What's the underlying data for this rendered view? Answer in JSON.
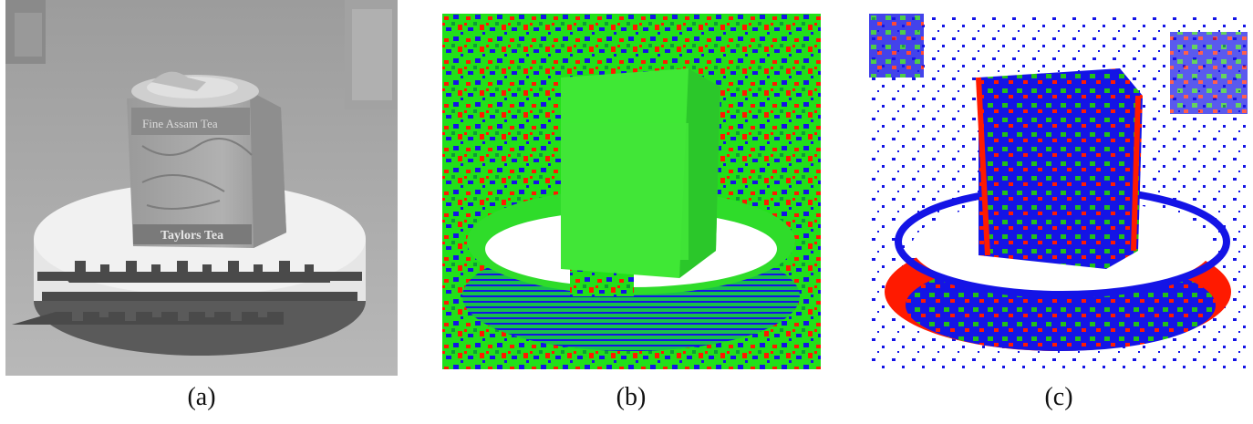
{
  "figure": {
    "panels": [
      {
        "id": "a",
        "caption": "(a)"
      },
      {
        "id": "b",
        "caption": "(b)"
      },
      {
        "id": "c",
        "caption": "(c)"
      }
    ],
    "panel_a_tin_labels": {
      "top_label": "Fine Assam Tea",
      "bottom_label": "Taylors Tea"
    },
    "palette": {
      "gray_bg": "#a9a9a9",
      "red": "#ff1a00",
      "green": "#22e01a",
      "blue": "#1414e6",
      "white": "#ffffff"
    }
  }
}
